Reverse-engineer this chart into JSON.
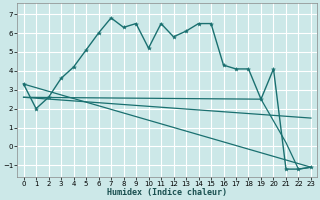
{
  "xlabel": "Humidex (Indice chaleur)",
  "bg_color": "#cce8e8",
  "grid_color": "#ffffff",
  "line_color": "#1a7070",
  "xlim": [
    -0.5,
    23.5
  ],
  "ylim": [
    -1.6,
    7.6
  ],
  "yticks": [
    -1,
    0,
    1,
    2,
    3,
    4,
    5,
    6,
    7
  ],
  "xticks": [
    0,
    1,
    2,
    3,
    4,
    5,
    6,
    7,
    8,
    9,
    10,
    11,
    12,
    13,
    14,
    15,
    16,
    17,
    18,
    19,
    20,
    21,
    22,
    23
  ],
  "line1_x": [
    0,
    1,
    2,
    3,
    4,
    5,
    6,
    7,
    8,
    9,
    10,
    11,
    12,
    13,
    14,
    15,
    16,
    17,
    18,
    19,
    20,
    21,
    22,
    23
  ],
  "line1_y": [
    3.3,
    2.0,
    2.6,
    3.6,
    4.2,
    5.1,
    6.0,
    6.8,
    6.3,
    6.5,
    5.2,
    6.5,
    5.8,
    6.1,
    6.5,
    6.5,
    4.3,
    4.1,
    4.1,
    2.5,
    4.1,
    -1.2,
    -1.2,
    -1.1
  ],
  "line2_x": [
    0,
    19,
    21,
    22,
    23
  ],
  "line2_y": [
    2.6,
    2.5,
    0.2,
    -1.2,
    -1.1
  ],
  "line3_x": [
    0,
    23
  ],
  "line3_y": [
    3.3,
    -1.1
  ],
  "line4_x": [
    0,
    23
  ],
  "line4_y": [
    2.6,
    1.5
  ]
}
